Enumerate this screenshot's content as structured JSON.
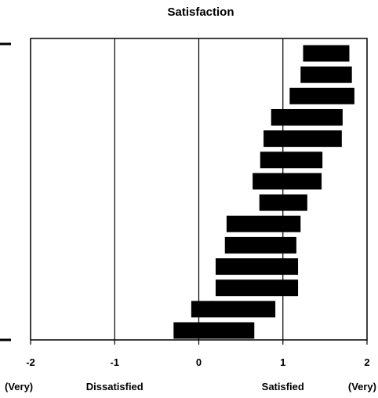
{
  "chart_data": {
    "type": "bar",
    "subtype": "floating-horizontal-range",
    "title": "Satisfaction",
    "xlim": [
      -2,
      2
    ],
    "x_ticks": [
      "-2",
      "-1",
      "0",
      "1",
      "2"
    ],
    "grid": "vertical lines at -1, 0, 1",
    "x_axis_labels": [
      {
        "text": "(Very)",
        "at": -2
      },
      {
        "text": "Dissatisfied",
        "at": -1
      },
      {
        "text": "Satisfied",
        "at": 1
      },
      {
        "text": "(Very)",
        "at": 2
      }
    ],
    "bar_color": "#000000",
    "ranges": [
      {
        "low": 1.24,
        "high": 1.79
      },
      {
        "low": 1.21,
        "high": 1.82
      },
      {
        "low": 1.08,
        "high": 1.85
      },
      {
        "low": 0.86,
        "high": 1.71
      },
      {
        "low": 0.77,
        "high": 1.7
      },
      {
        "low": 0.73,
        "high": 1.47
      },
      {
        "low": 0.64,
        "high": 1.46
      },
      {
        "low": 0.72,
        "high": 1.29
      },
      {
        "low": 0.33,
        "high": 1.21
      },
      {
        "low": 0.31,
        "high": 1.16
      },
      {
        "low": 0.2,
        "high": 1.18
      },
      {
        "low": 0.2,
        "high": 1.18
      },
      {
        "low": -0.09,
        "high": 0.91
      },
      {
        "low": -0.3,
        "high": 0.66
      }
    ]
  }
}
